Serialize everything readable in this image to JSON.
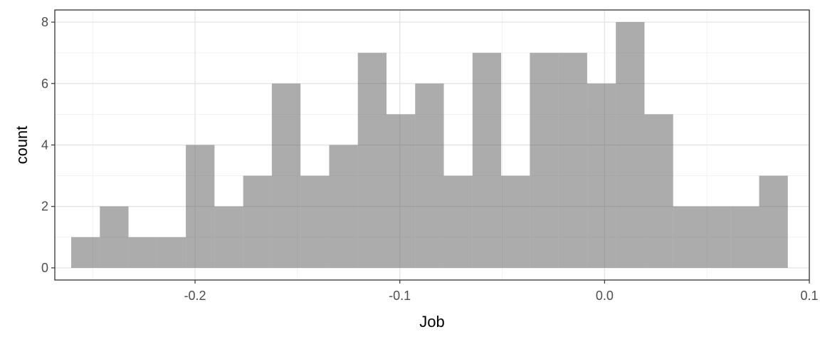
{
  "chart_data": {
    "type": "bar",
    "subtype": "histogram",
    "xlabel": "Job",
    "ylabel": "count",
    "xlim": [
      -0.2685,
      0.1
    ],
    "ylim": [
      0,
      8
    ],
    "x_ticks": [
      -0.2,
      -0.1,
      0.0,
      0.1
    ],
    "x_tick_labels": [
      "-0.2",
      "-0.1",
      "0.0",
      "0.1"
    ],
    "y_ticks": [
      0,
      2,
      4,
      6,
      8
    ],
    "y_tick_labels": [
      "0",
      "2",
      "4",
      "6",
      "8"
    ],
    "bin_edges": [
      -0.2605,
      -0.2465,
      -0.2325,
      -0.2185,
      -0.2045,
      -0.1905,
      -0.1765,
      -0.1625,
      -0.1485,
      -0.1345,
      -0.1205,
      -0.1065,
      -0.0925,
      -0.0785,
      -0.0645,
      -0.0505,
      -0.0365,
      -0.0225,
      -0.0085,
      0.0055,
      0.0195,
      0.0335,
      0.0475,
      0.0615,
      0.0755,
      0.0895
    ],
    "counts": [
      1,
      2,
      1,
      1,
      4,
      2,
      3,
      6,
      3,
      4,
      7,
      5,
      6,
      3,
      7,
      3,
      7,
      7,
      6,
      8,
      5,
      2,
      2,
      2,
      3
    ],
    "grid": true,
    "theme": "bw",
    "bar_color": "#595959",
    "bar_opacity": 0.5
  }
}
